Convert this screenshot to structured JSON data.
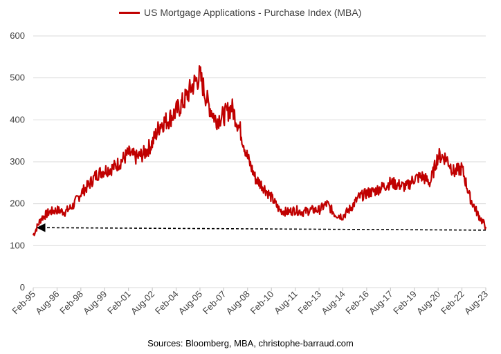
{
  "chart_data": {
    "type": "line",
    "title": "",
    "xlabel": "",
    "ylabel": "",
    "ylim": [
      0,
      600
    ],
    "y_ticks": [
      0,
      100,
      200,
      300,
      400,
      500,
      600
    ],
    "x_tick_labels": [
      "Feb-95",
      "Aug-96",
      "Feb-98",
      "Aug-99",
      "Feb-01",
      "Aug-02",
      "Feb-04",
      "Aug-05",
      "Feb-07",
      "Aug-08",
      "Feb-10",
      "Aug-11",
      "Feb-13",
      "Aug-14",
      "Feb-16",
      "Aug-17",
      "Feb-19",
      "Aug-20",
      "Feb-22",
      "Aug-23"
    ],
    "grid": "horizontal",
    "legend": "top-center",
    "series": [
      {
        "name": "US Mortgage Applications - Purchase Index (MBA)",
        "color": "#c00000",
        "points": [
          [
            "Feb-95",
            125
          ],
          [
            "Aug-95",
            165
          ],
          [
            "Feb-96",
            180
          ],
          [
            "Aug-96",
            185
          ],
          [
            "Feb-97",
            180
          ],
          [
            "Aug-97",
            195
          ],
          [
            "Feb-98",
            225
          ],
          [
            "Aug-98",
            245
          ],
          [
            "Feb-99",
            270
          ],
          [
            "Aug-99",
            280
          ],
          [
            "Feb-00",
            285
          ],
          [
            "Aug-00",
            300
          ],
          [
            "Feb-01",
            320
          ],
          [
            "Aug-01",
            310
          ],
          [
            "Feb-02",
            320
          ],
          [
            "Aug-02",
            345
          ],
          [
            "Feb-03",
            390
          ],
          [
            "Aug-03",
            400
          ],
          [
            "Feb-04",
            420
          ],
          [
            "Aug-04",
            445
          ],
          [
            "Feb-05",
            480
          ],
          [
            "Aug-05",
            505
          ],
          [
            "Feb-06",
            440
          ],
          [
            "Aug-06",
            400
          ],
          [
            "Feb-07",
            410
          ],
          [
            "Aug-07",
            430
          ],
          [
            "Feb-08",
            380
          ],
          [
            "Aug-08",
            310
          ],
          [
            "Feb-09",
            260
          ],
          [
            "Aug-09",
            240
          ],
          [
            "Feb-10",
            215
          ],
          [
            "Aug-10",
            185
          ],
          [
            "Feb-11",
            180
          ],
          [
            "Aug-11",
            185
          ],
          [
            "Feb-12",
            180
          ],
          [
            "Aug-12",
            185
          ],
          [
            "Feb-13",
            185
          ],
          [
            "Aug-13",
            200
          ],
          [
            "Feb-14",
            175
          ],
          [
            "Aug-14",
            170
          ],
          [
            "Feb-15",
            190
          ],
          [
            "Aug-15",
            215
          ],
          [
            "Feb-16",
            225
          ],
          [
            "Aug-16",
            230
          ],
          [
            "Feb-17",
            240
          ],
          [
            "Aug-17",
            250
          ],
          [
            "Feb-18",
            245
          ],
          [
            "Aug-18",
            240
          ],
          [
            "Feb-19",
            260
          ],
          [
            "Aug-19",
            265
          ],
          [
            "Feb-20",
            250
          ],
          [
            "Aug-20",
            315
          ],
          [
            "Feb-21",
            310
          ],
          [
            "Aug-21",
            275
          ],
          [
            "Feb-22",
            285
          ],
          [
            "Aug-22",
            215
          ],
          [
            "Feb-23",
            175
          ],
          [
            "Aug-23",
            145
          ]
        ]
      },
      {
        "name": "",
        "style": "dashed-arrow",
        "color": "#000000",
        "points": [
          [
            "Aug-23",
            137
          ],
          [
            "Feb-95",
            143
          ]
        ]
      }
    ]
  },
  "source_text": "Sources: Bloomberg, MBA, christophe-barraud.com"
}
